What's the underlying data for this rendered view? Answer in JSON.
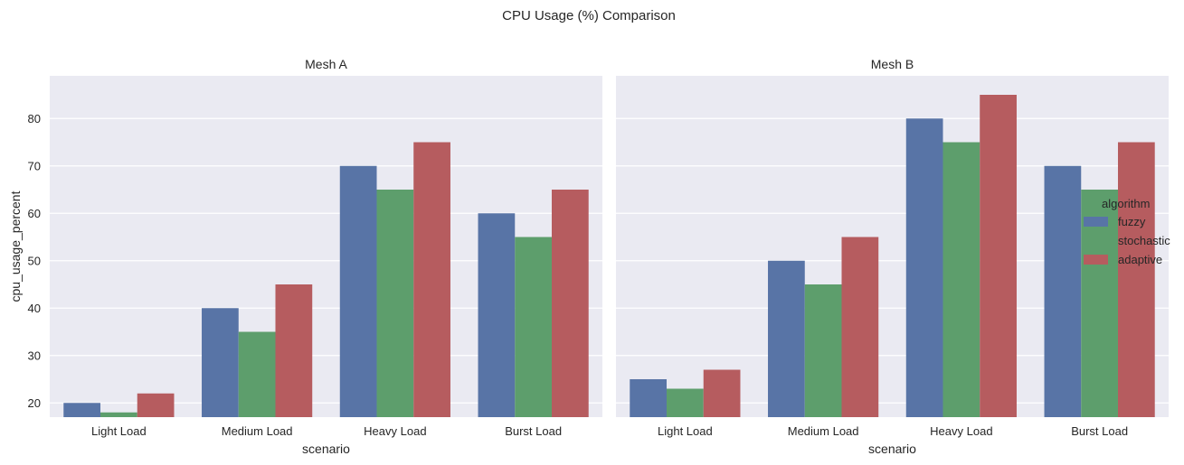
{
  "chart_data": {
    "type": "bar",
    "title": "CPU Usage (%) Comparison",
    "ylabel": "cpu_usage_percent",
    "ylim": [
      17,
      89
    ],
    "yticks": [
      20,
      30,
      40,
      50,
      60,
      70,
      80
    ],
    "grid": true,
    "legend_placement": "right",
    "legend_title": "algorithm",
    "series_names": [
      "fuzzy",
      "stochastic",
      "adaptive"
    ],
    "colors": {
      "fuzzy": "#5874a6",
      "stochastic": "#5d9e6c",
      "adaptive": "#b65c5f"
    },
    "facets": [
      {
        "title": "Mesh A",
        "xlabel": "scenario",
        "categories": [
          "Light Load",
          "Medium Load",
          "Heavy Load",
          "Burst Load"
        ],
        "series": [
          {
            "name": "fuzzy",
            "values": [
              20,
              40,
              70,
              60
            ]
          },
          {
            "name": "stochastic",
            "values": [
              18,
              35,
              65,
              55
            ]
          },
          {
            "name": "adaptive",
            "values": [
              22,
              45,
              75,
              65
            ]
          }
        ]
      },
      {
        "title": "Mesh B",
        "xlabel": "scenario",
        "categories": [
          "Light Load",
          "Medium Load",
          "Heavy Load",
          "Burst Load"
        ],
        "series": [
          {
            "name": "fuzzy",
            "values": [
              25,
              50,
              80,
              70
            ]
          },
          {
            "name": "stochastic",
            "values": [
              23,
              45,
              75,
              65
            ]
          },
          {
            "name": "adaptive",
            "values": [
              27,
              55,
              85,
              75
            ]
          }
        ]
      }
    ]
  }
}
